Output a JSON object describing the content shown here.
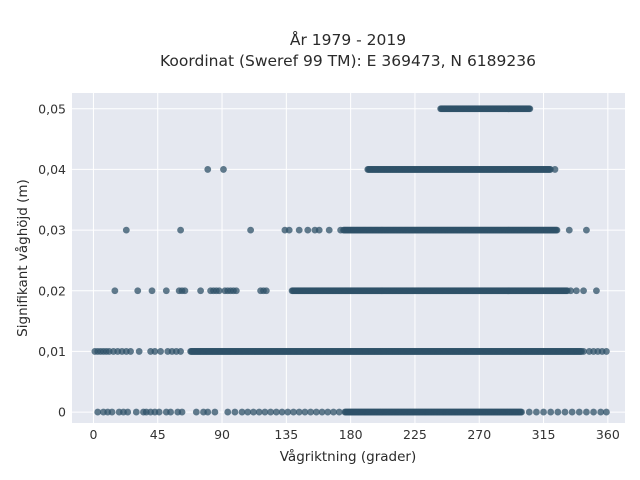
{
  "chart_data": {
    "type": "scatter",
    "title": "År 1979 - 2019",
    "subtitle": "Koordinat (Sweref 99 TM): E 369473, N 6189236",
    "xlabel": "Vågriktning (grader)",
    "ylabel": "Signifikant våghöjd (m)",
    "xlim": [
      -15,
      372
    ],
    "ylim": [
      -0.0018,
      0.0526
    ],
    "x_ticks": [
      0,
      45,
      90,
      135,
      180,
      225,
      270,
      315,
      360
    ],
    "x_tick_labels": [
      "0",
      "45",
      "90",
      "135",
      "180",
      "225",
      "270",
      "315",
      "360"
    ],
    "y_ticks": [
      0,
      0.01,
      0.02,
      0.03,
      0.04,
      0.05
    ],
    "y_tick_labels": [
      "0",
      "0,01",
      "0,02",
      "0,03",
      "0,04",
      "0,05"
    ],
    "grid": true,
    "marker_color": "#2f5168",
    "background": "#e5e8f0",
    "rows": [
      {
        "y": 0.05,
        "dense_range": [
          243,
          306
        ],
        "sparse": []
      },
      {
        "y": 0.04,
        "dense_range": [
          192,
          320
        ],
        "sparse": [
          80,
          91,
          323
        ]
      },
      {
        "y": 0.03,
        "dense_range": [
          175,
          325
        ],
        "sparse": [
          23,
          61,
          110,
          134,
          137,
          144,
          150,
          155,
          158,
          165,
          173,
          333,
          345
        ]
      },
      {
        "y": 0.02,
        "dense_range": [
          139,
          332
        ],
        "sparse": [
          15,
          31,
          41,
          51,
          60,
          62,
          64,
          75,
          82,
          84,
          86,
          88,
          92,
          94,
          96,
          98,
          100,
          117,
          119,
          121,
          334,
          338,
          343,
          352
        ]
      },
      {
        "y": 0.01,
        "dense_range": [
          68,
          342
        ],
        "sparse": [
          1,
          3,
          5,
          7,
          9,
          11,
          14,
          17,
          20,
          23,
          26,
          32,
          40,
          43,
          47,
          52,
          55,
          58,
          61,
          343,
          347,
          350,
          353,
          356,
          359
        ]
      },
      {
        "y": 0.0,
        "dense_range": [
          176,
          300
        ],
        "sparse": [
          3,
          7,
          10,
          13,
          18,
          21,
          24,
          30,
          35,
          37,
          40,
          43,
          46,
          51,
          54,
          59,
          62,
          72,
          77,
          80,
          85,
          94,
          99,
          104,
          108,
          112,
          116,
          120,
          124,
          128,
          132,
          136,
          140,
          144,
          148,
          152,
          156,
          160,
          164,
          168,
          172,
          305,
          310,
          315,
          320,
          325,
          330,
          335,
          340,
          345,
          350,
          355,
          359
        ]
      }
    ]
  }
}
